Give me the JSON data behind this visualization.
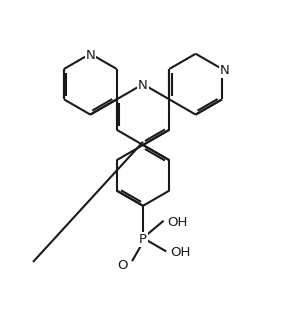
{
  "background_color": "#ffffff",
  "line_color": "#1a1a1a",
  "line_width": 1.5,
  "dbo": 0.055,
  "font_size": 9.5,
  "figsize": [
    2.86,
    3.32
  ],
  "dpi": 100,
  "xlim": [
    -3.0,
    3.0
  ],
  "ylim": [
    -4.5,
    2.8
  ]
}
